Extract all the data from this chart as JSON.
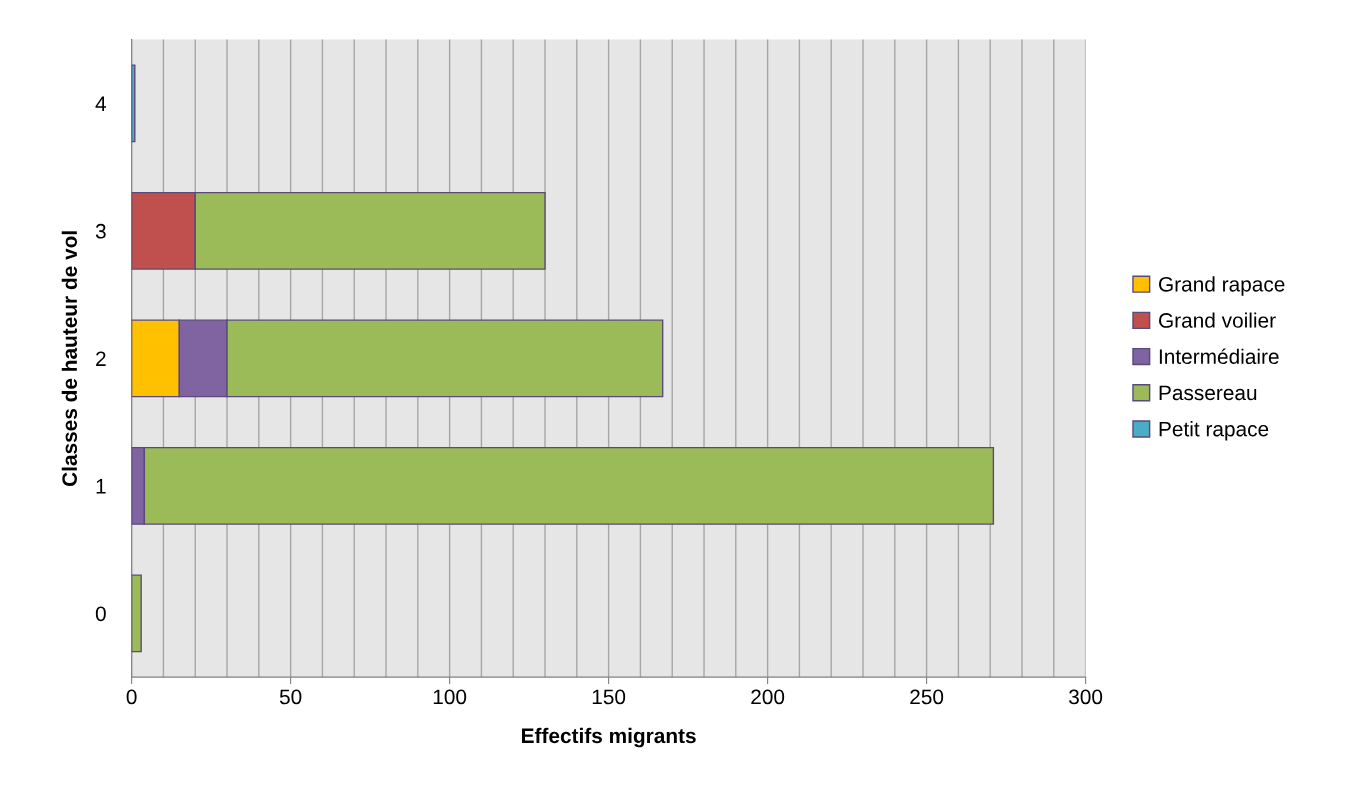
{
  "chart_data": {
    "type": "bar",
    "orientation": "horizontal",
    "stacked": true,
    "xlabel": "Effectifs migrants",
    "ylabel": "Classes de hauteur de vol",
    "categories": [
      "4",
      "3",
      "2",
      "1",
      "0"
    ],
    "series": [
      {
        "name": "Grand rapace",
        "color": "#ffc000",
        "values": [
          0,
          0,
          15,
          0,
          0
        ]
      },
      {
        "name": "Grand voilier",
        "color": "#c0504d",
        "values": [
          0,
          20,
          0,
          0,
          0
        ]
      },
      {
        "name": "Intermédiaire",
        "color": "#8064a2",
        "values": [
          0,
          0,
          15,
          4,
          0
        ]
      },
      {
        "name": "Passereau",
        "color": "#9bbb59",
        "values": [
          0,
          110,
          137,
          267,
          3
        ]
      },
      {
        "name": "Petit rapace",
        "color": "#4bacc6",
        "values": [
          1,
          0,
          0,
          0,
          0
        ]
      }
    ],
    "xlim": [
      0,
      300
    ],
    "xticks": [
      0,
      {
        "value": 10,
        "label": null
      },
      {
        "value": 20,
        "label": null
      },
      {
        "value": 30,
        "label": null
      },
      {
        "value": 40,
        "label": null
      },
      50,
      {
        "value": 60,
        "label": null
      },
      {
        "value": 70,
        "label": null
      },
      {
        "value": 80,
        "label": null
      },
      {
        "value": 90,
        "label": null
      },
      100,
      {
        "value": 110,
        "label": null
      },
      {
        "value": 120,
        "label": null
      },
      {
        "value": 130,
        "label": null
      },
      {
        "value": 140,
        "label": null
      },
      150,
      {
        "value": 160,
        "label": null
      },
      {
        "value": 170,
        "label": null
      },
      {
        "value": 180,
        "label": null
      },
      {
        "value": 190,
        "label": null
      },
      200,
      {
        "value": 210,
        "label": null
      },
      {
        "value": 220,
        "label": null
      },
      {
        "value": 230,
        "label": null
      },
      {
        "value": 240,
        "label": null
      },
      250,
      {
        "value": 260,
        "label": null
      },
      {
        "value": 270,
        "label": null
      },
      {
        "value": 280,
        "label": null
      },
      {
        "value": 290,
        "label": null
      },
      300
    ],
    "grid": "x",
    "legend": "right"
  }
}
